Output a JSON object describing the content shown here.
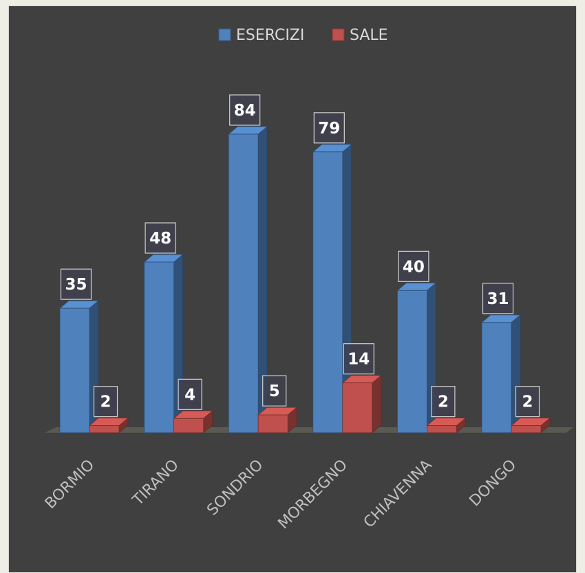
{
  "chart_data": {
    "type": "bar",
    "style": "3d-clustered-column",
    "categories": [
      "BORMIO",
      "TIRANO",
      "SONDRIO",
      "MORBEGNO",
      "CHIAVENNA",
      "DONGO"
    ],
    "series": [
      {
        "name": "ESERCIZI",
        "values": [
          35,
          48,
          84,
          79,
          40,
          31
        ],
        "color": "#4f81bd"
      },
      {
        "name": "SALE",
        "values": [
          2,
          4,
          5,
          14,
          2,
          2
        ],
        "color": "#c0504d"
      }
    ],
    "title": "",
    "xlabel": "",
    "ylabel": "",
    "ylim": [
      0,
      90
    ],
    "grid": false,
    "legend": "top-center",
    "background": "#404040",
    "data_labels": true
  }
}
